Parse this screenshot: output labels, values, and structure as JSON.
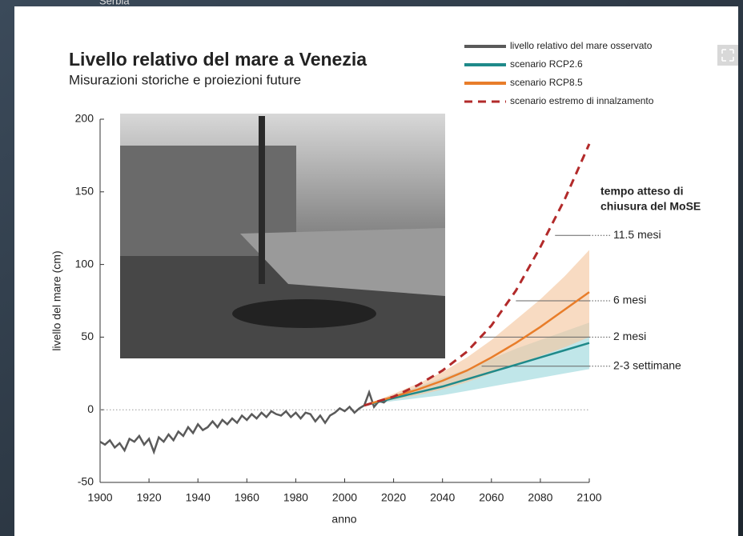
{
  "background": {
    "map_label": "Serbia"
  },
  "chart_data": {
    "type": "line",
    "title": "Livello relativo del mare a Venezia",
    "subtitle": "Misurazioni storiche e proiezioni future",
    "x_label": "anno",
    "y_label": "livello del mare (cm)",
    "xlim": [
      1900,
      2100
    ],
    "ylim": [
      -50,
      200
    ],
    "xticks": [
      1900,
      1920,
      1940,
      1960,
      1980,
      2000,
      2020,
      2040,
      2060,
      2080,
      2100
    ],
    "yticks": [
      -50,
      0,
      50,
      100,
      150,
      200
    ],
    "zero_line": true,
    "legend": "upper right",
    "series": [
      {
        "name": "livello relativo del mare osservato",
        "color": "#5a5a5a",
        "style": "solid",
        "x": [
          1900,
          1902,
          1904,
          1906,
          1908,
          1910,
          1912,
          1914,
          1916,
          1918,
          1920,
          1922,
          1924,
          1926,
          1928,
          1930,
          1932,
          1934,
          1936,
          1938,
          1940,
          1942,
          1944,
          1946,
          1948,
          1950,
          1952,
          1954,
          1956,
          1958,
          1960,
          1962,
          1964,
          1966,
          1968,
          1970,
          1972,
          1974,
          1976,
          1978,
          1980,
          1982,
          1984,
          1986,
          1988,
          1990,
          1992,
          1994,
          1996,
          1998,
          2000,
          2002,
          2004,
          2006,
          2008,
          2010,
          2012,
          2014,
          2016,
          2018
        ],
        "values": [
          -22,
          -24,
          -21,
          -26,
          -23,
          -28,
          -20,
          -22,
          -18,
          -24,
          -20,
          -29,
          -19,
          -22,
          -17,
          -21,
          -15,
          -18,
          -12,
          -16,
          -10,
          -14,
          -12,
          -8,
          -12,
          -7,
          -10,
          -6,
          -9,
          -4,
          -7,
          -3,
          -6,
          -2,
          -5,
          -1,
          -3,
          -4,
          -1,
          -5,
          -2,
          -6,
          -2,
          -3,
          -8,
          -4,
          -9,
          -4,
          -2,
          1,
          -1,
          2,
          -2,
          1,
          3,
          12,
          2,
          6,
          5,
          8
        ]
      },
      {
        "name": "scenario RCP2.6",
        "color": "#1f8a8a",
        "style": "solid",
        "band_color": "#9ed9dd",
        "x": [
          2008,
          2020,
          2030,
          2040,
          2050,
          2060,
          2070,
          2080,
          2090,
          2100
        ],
        "values": [
          3,
          8,
          12,
          16,
          21,
          26,
          31,
          36,
          41,
          46
        ],
        "lower": [
          3,
          6,
          8,
          10,
          13,
          16,
          19,
          22,
          25,
          28
        ],
        "upper": [
          3,
          10,
          16,
          22,
          28,
          35,
          42,
          48,
          54,
          60
        ]
      },
      {
        "name": "scenario RCP8.5",
        "color": "#e87d2a",
        "style": "solid",
        "band_color": "#f5c7a1",
        "x": [
          2008,
          2020,
          2030,
          2040,
          2050,
          2060,
          2070,
          2080,
          2090,
          2100
        ],
        "values": [
          3,
          9,
          14,
          20,
          27,
          36,
          46,
          57,
          69,
          81
        ],
        "lower": [
          3,
          7,
          10,
          14,
          19,
          25,
          31,
          37,
          43,
          50
        ],
        "upper": [
          3,
          11,
          18,
          26,
          36,
          48,
          62,
          76,
          92,
          110
        ]
      },
      {
        "name": "scenario estremo di innalzamento",
        "color": "#b22a2a",
        "style": "dashed",
        "x": [
          2008,
          2020,
          2030,
          2040,
          2050,
          2060,
          2070,
          2080,
          2090,
          2100
        ],
        "values": [
          3,
          9,
          17,
          27,
          40,
          58,
          82,
          112,
          145,
          183
        ]
      }
    ],
    "annotation": {
      "title": [
        "tempo atteso di",
        "chiusura del MoSE"
      ],
      "levels": [
        {
          "label": "11.5 mesi",
          "y": 120,
          "x_start": 2086
        },
        {
          "label": "6 mesi",
          "y": 75,
          "x_start": 2070
        },
        {
          "label": "2 mesi",
          "y": 50,
          "x_start": 2056
        },
        {
          "label": "2-3 settimane",
          "y": 30,
          "x_start": 2056
        }
      ]
    }
  }
}
